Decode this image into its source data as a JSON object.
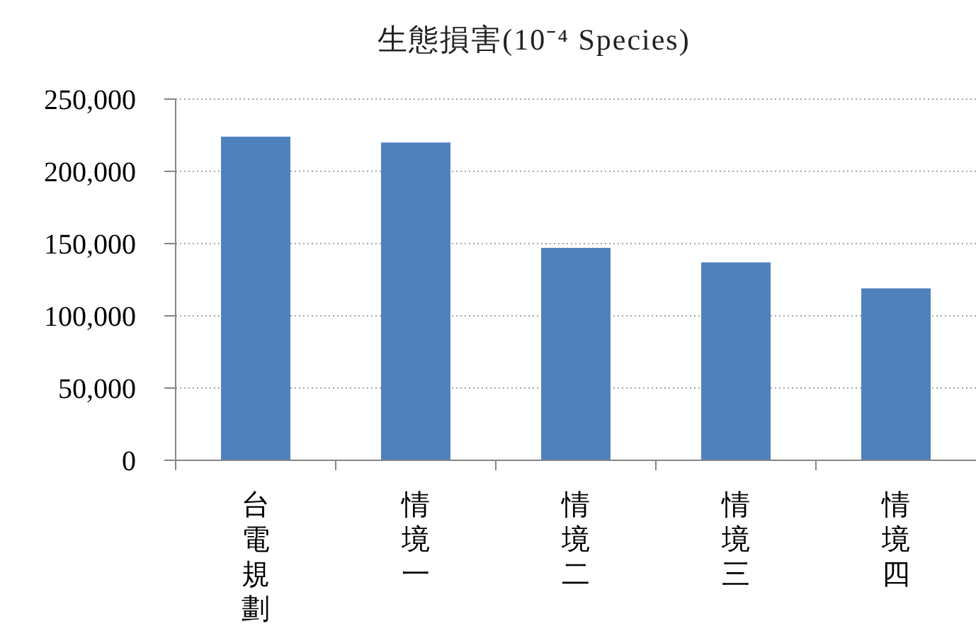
{
  "chart_data": {
    "type": "bar",
    "title": "生態損害(10⁻⁴ Species)",
    "categories": [
      "台電規劃",
      "情境一",
      "情境二",
      "情境三",
      "情境四"
    ],
    "values": [
      224000,
      220000,
      147000,
      137000,
      119000
    ],
    "color": "#4f81bd",
    "ylim": [
      0,
      250000
    ],
    "yticks": [
      0,
      {
        "value": 50000,
        "label": "50,000"
      },
      {
        "value": 100000,
        "label": "100,000"
      },
      {
        "value": 150000,
        "label": "150,000"
      },
      {
        "value": 200000,
        "label": "200,000"
      },
      {
        "value": 250000,
        "label": "250,000"
      }
    ],
    "grid": "y"
  }
}
